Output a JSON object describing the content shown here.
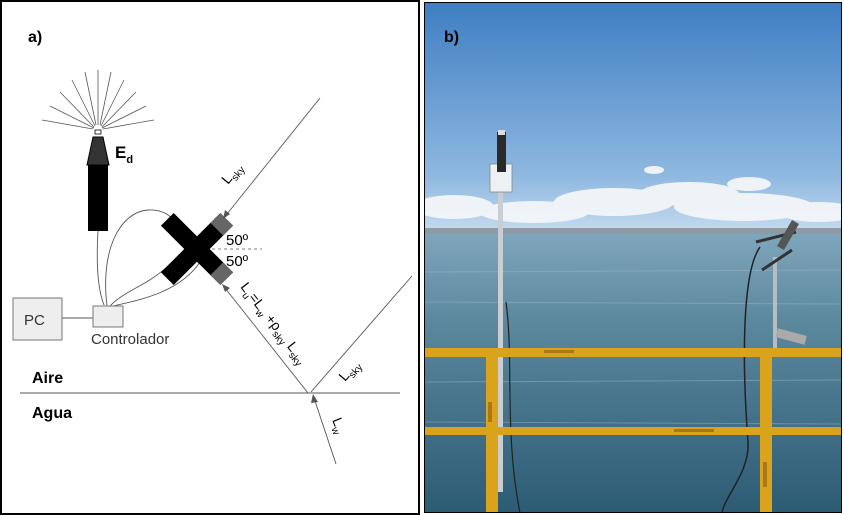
{
  "panel_a": {
    "label": "a)",
    "ed_main": "E",
    "ed_sub": "d",
    "lsky_main": "L",
    "lsky_sub": "sky",
    "lsky2_main": "L",
    "lsky2_sub": "sky",
    "angle_upper": "50º",
    "angle_lower": "50º",
    "eq": {
      "lu_main": "L",
      "lu_sub": "u",
      "equals_l": "=L",
      "w_sub": "w",
      "plus_rho": "+ρ",
      "rho_sub": "sky",
      "l_main": "L",
      "l_sub": "sky"
    },
    "pc_label": "PC",
    "controller_label": "Controlador",
    "air_label": "Aire",
    "water_label": "Agua",
    "lw_main": "L",
    "lw_sub": "w"
  },
  "panel_b": {
    "label": "b)"
  },
  "colors": {
    "frame": "#000000",
    "sky_top": "#3f7fc4",
    "sky_bottom": "#b8d3ec",
    "sea_top": "#7aa3b8",
    "sea_bottom": "#2f5f7a",
    "railing": "#d9a31c"
  }
}
